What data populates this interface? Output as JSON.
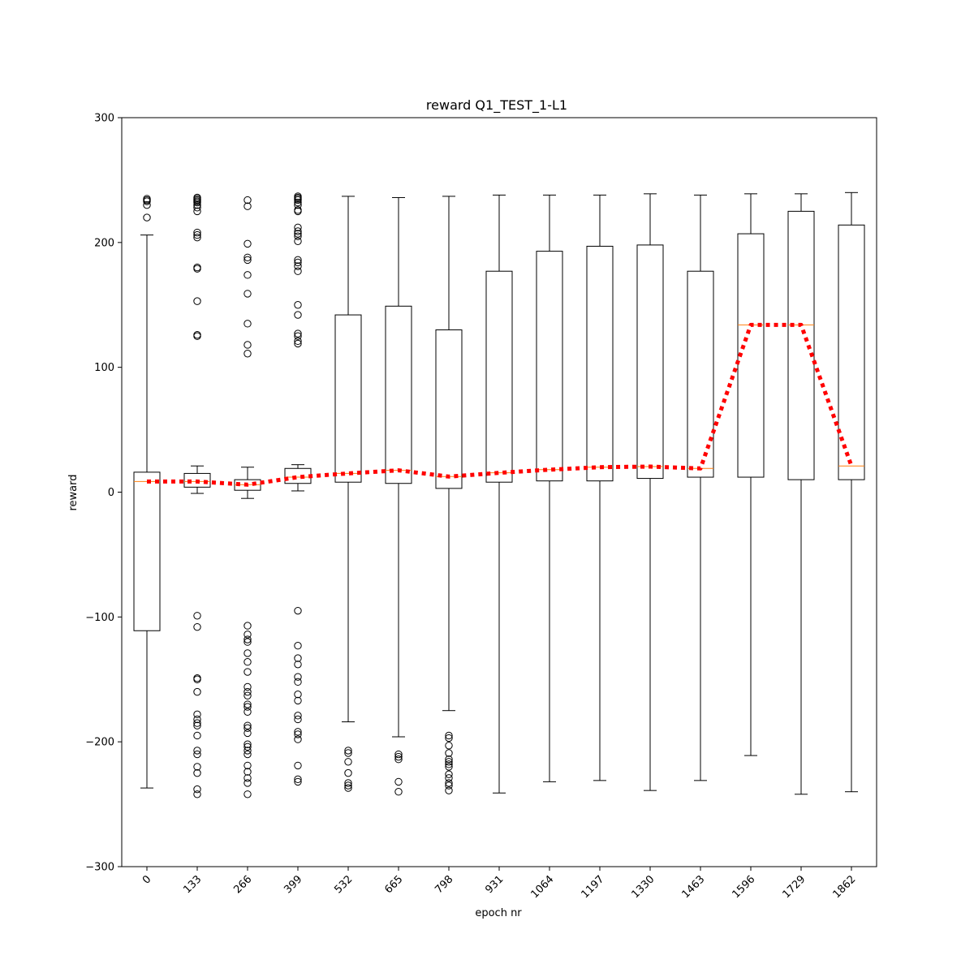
{
  "chart_data": {
    "type": "box",
    "title": "reward Q1_TEST_1-L1",
    "xlabel": "epoch nr",
    "ylabel": "reward",
    "ylim": [
      -300,
      300
    ],
    "yticks": [
      -300,
      -200,
      -100,
      0,
      100,
      200,
      300
    ],
    "ytick_labels": [
      "−300",
      "−200",
      "−100",
      "0",
      "100",
      "200",
      "300"
    ],
    "categories": [
      "0",
      "133",
      "266",
      "399",
      "532",
      "665",
      "798",
      "931",
      "1064",
      "1197",
      "1330",
      "1463",
      "1596",
      "1729",
      "1862"
    ],
    "box_color": "#000000",
    "median_color": "#ff7f0e",
    "mean_line_color": "#ff0000",
    "grid": false,
    "boxes": [
      {
        "whislo": -237,
        "q1": -111,
        "med": 8.5,
        "q3": 16,
        "whishi": 206,
        "fliers": [
          235,
          234,
          233,
          230,
          220
        ]
      },
      {
        "whislo": -1,
        "q1": 4,
        "med": 8.5,
        "q3": 15,
        "whishi": 21,
        "fliers": [
          236,
          235,
          234,
          233,
          232,
          230,
          228,
          225,
          208,
          206,
          204,
          180,
          179,
          153,
          126,
          125,
          -99,
          -108,
          -149,
          -150,
          -160,
          -178,
          -182,
          -185,
          -187,
          -195,
          -207,
          -210,
          -220,
          -225,
          -238,
          -242
        ]
      },
      {
        "whislo": -5,
        "q1": 1.5,
        "med": 6,
        "q3": 10,
        "whishi": 20,
        "fliers": [
          234,
          229,
          199,
          188,
          186,
          174,
          159,
          135,
          118,
          111,
          -107,
          -114,
          -118,
          -120,
          -129,
          -136,
          -144,
          -156,
          -160,
          -163,
          -170,
          -172,
          -176,
          -187,
          -189,
          -193,
          -202,
          -204,
          -207,
          -210,
          -219,
          -224,
          -229,
          -233,
          -242
        ]
      },
      {
        "whislo": 1,
        "q1": 7,
        "med": 12,
        "q3": 19,
        "whishi": 22,
        "fliers": [
          237,
          236,
          235,
          234,
          232,
          230,
          226,
          225,
          212,
          209,
          207,
          205,
          201,
          186,
          184,
          181,
          177,
          150,
          142,
          127,
          125,
          121,
          119,
          -95,
          -123,
          -133,
          -138,
          -148,
          -152,
          -162,
          -167,
          -179,
          -182,
          -192,
          -194,
          -198,
          -219,
          -230,
          -232
        ]
      },
      {
        "whislo": -184,
        "q1": 8,
        "med": 15,
        "q3": 142,
        "whishi": 237,
        "fliers": [
          -207,
          -209,
          -216,
          -225,
          -233,
          -235,
          -237
        ]
      },
      {
        "whislo": -196,
        "q1": 7,
        "med": 17.5,
        "q3": 149,
        "whishi": 236,
        "fliers": [
          -210,
          -212,
          -214,
          -232,
          -240
        ]
      },
      {
        "whislo": -175,
        "q1": 3,
        "med": 12.5,
        "q3": 130,
        "whishi": 237,
        "fliers": [
          -195,
          -197,
          -203,
          -209,
          -214,
          -216,
          -218,
          -220,
          -226,
          -229,
          -233,
          -235,
          -239
        ]
      },
      {
        "whislo": -241,
        "q1": 8,
        "med": 15.5,
        "q3": 177,
        "whishi": 238,
        "fliers": []
      },
      {
        "whislo": -232,
        "q1": 9,
        "med": 18,
        "q3": 193,
        "whishi": 238,
        "fliers": []
      },
      {
        "whislo": -231,
        "q1": 9,
        "med": 20,
        "q3": 197,
        "whishi": 238,
        "fliers": []
      },
      {
        "whislo": -239,
        "q1": 11,
        "med": 20.5,
        "q3": 198,
        "whishi": 239,
        "fliers": []
      },
      {
        "whislo": -231,
        "q1": 12,
        "med": 19,
        "q3": 177,
        "whishi": 238,
        "fliers": []
      },
      {
        "whislo": -211,
        "q1": 12,
        "med": 134,
        "q3": 207,
        "whishi": 239,
        "fliers": []
      },
      {
        "whislo": -242,
        "q1": 10,
        "med": 134,
        "q3": 225,
        "whishi": 239,
        "fliers": []
      },
      {
        "whislo": -240,
        "q1": 10,
        "med": 21,
        "q3": 214,
        "whishi": 240,
        "fliers": []
      }
    ]
  }
}
